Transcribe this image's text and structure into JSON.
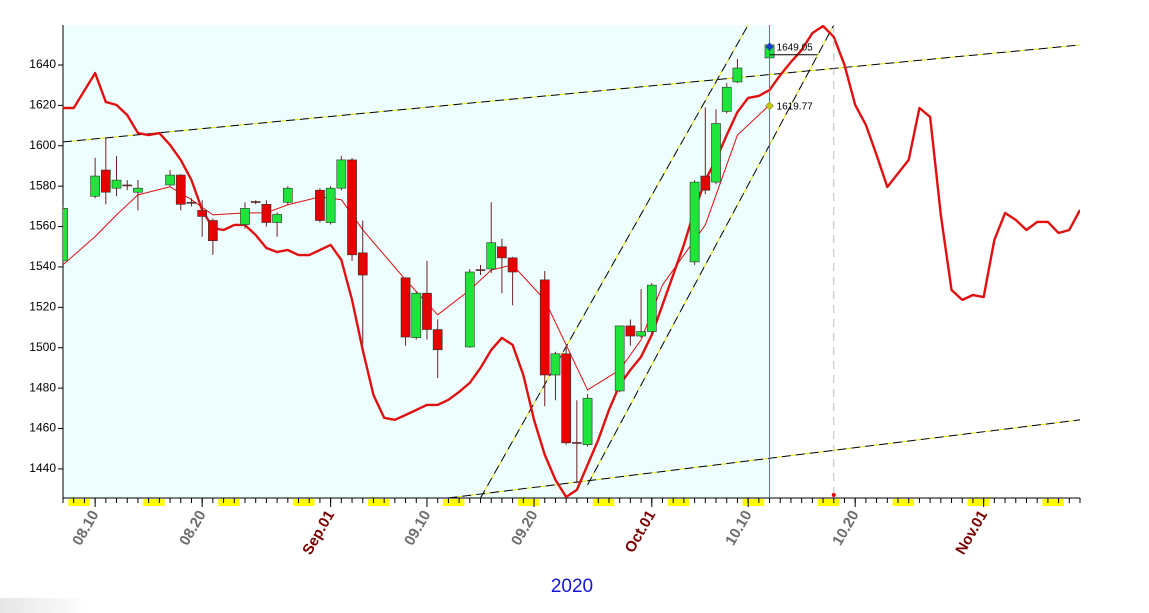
{
  "chart_data": {
    "type": "candlestick",
    "xlabel": "2020",
    "x": [
      "2020-08-07",
      "2020-08-10",
      "2020-08-11",
      "2020-08-12",
      "2020-08-13",
      "2020-08-14",
      "2020-08-17",
      "2020-08-18",
      "2020-08-19",
      "2020-08-20",
      "2020-08-21",
      "2020-08-24",
      "2020-08-25",
      "2020-08-26",
      "2020-08-27",
      "2020-08-28",
      "2020-08-31",
      "2020-09-01",
      "2020-09-02",
      "2020-09-03",
      "2020-09-04",
      "2020-09-08",
      "2020-09-09",
      "2020-09-10",
      "2020-09-11",
      "2020-09-14",
      "2020-09-15",
      "2020-09-16",
      "2020-09-17",
      "2020-09-18",
      "2020-09-21",
      "2020-09-22",
      "2020-09-23",
      "2020-09-24",
      "2020-09-25",
      "2020-09-28",
      "2020-09-29",
      "2020-09-30",
      "2020-10-01",
      "2020-10-05",
      "2020-10-06",
      "2020-10-07",
      "2020-10-08",
      "2020-10-09",
      "2020-10-12"
    ],
    "open": [
      1543,
      1575,
      1588,
      1579,
      1580.6,
      1577,
      1580.6,
      1585.5,
      1572,
      1568,
      1563,
      1561,
      1572.4,
      1571,
      1562,
      1572,
      1578,
      1562,
      1579,
      1593,
      1547,
      1534.6,
      1505,
      1527,
      1509,
      1500.4,
      1538.7,
      1539,
      1550,
      1544.5,
      1533.6,
      1486.5,
      1497,
      1453.1,
      1452,
      1478.6,
      1510.8,
      1505.8,
      1508,
      1542.5,
      1585,
      1582,
      1617,
      1631.6,
      1643.5
    ],
    "high": [
      1570,
      1594,
      1604,
      1595,
      1583,
      1583,
      1588,
      1586,
      1574,
      1573,
      1564,
      1572,
      1573,
      1573,
      1567,
      1580,
      1579,
      1580,
      1595,
      1594,
      1563,
      1535,
      1528,
      1543,
      1514,
      1539,
      1541,
      1572,
      1554,
      1545,
      1538,
      1498,
      1501,
      1474,
      1477,
      1511,
      1514,
      1529,
      1532,
      1583,
      1619,
      1618,
      1631,
      1643,
      1651
    ],
    "low": [
      1541,
      1574,
      1571,
      1575,
      1578,
      1568,
      1580,
      1568,
      1570,
      1555,
      1546,
      1559,
      1571,
      1560,
      1555,
      1571,
      1562,
      1561,
      1578,
      1543,
      1502,
      1501,
      1504,
      1504,
      1485,
      1500,
      1536,
      1537,
      1527,
      1521,
      1471,
      1474,
      1452,
      1433,
      1451,
      1478,
      1501,
      1505,
      1507,
      1541,
      1576,
      1581,
      1616,
      1631,
      1643
    ],
    "close": [
      1569,
      1585,
      1577,
      1583,
      1580.2,
      1579,
      1585.5,
      1571,
      1571.6,
      1565,
      1553,
      1569,
      1572,
      1562,
      1566,
      1579,
      1563,
      1579,
      1593,
      1546,
      1536,
      1505.3,
      1527,
      1509,
      1499,
      1537.5,
      1538.3,
      1552,
      1544.5,
      1537.5,
      1486.5,
      1497,
      1452.9,
      1452.7,
      1475,
      1510.8,
      1505.8,
      1508,
      1531,
      1582,
      1578,
      1611,
      1629,
      1638.5,
      1650
    ],
    "up_color": "#1fe43a",
    "down_color": "#e60000",
    "overlays": [
      {
        "color": "#e01010",
        "width": 2.4,
        "x": [
          "2020-08-07",
          "2020-08-08",
          "2020-08-10",
          "2020-08-11",
          "2020-08-12",
          "2020-08-13",
          "2020-08-14",
          "2020-08-15",
          "2020-08-16",
          "2020-08-17",
          "2020-08-18",
          "2020-08-19",
          "2020-08-20",
          "2020-08-21",
          "2020-08-22",
          "2020-08-23",
          "2020-08-24",
          "2020-08-25",
          "2020-08-26",
          "2020-08-27",
          "2020-08-28",
          "2020-08-29",
          "2020-08-30",
          "2020-08-31",
          "2020-09-01",
          "2020-09-02",
          "2020-09-03",
          "2020-09-04",
          "2020-09-05",
          "2020-09-06",
          "2020-09-07",
          "2020-09-08",
          "2020-09-09",
          "2020-09-10",
          "2020-09-11",
          "2020-09-12",
          "2020-09-13",
          "2020-09-14",
          "2020-09-15",
          "2020-09-16",
          "2020-09-17",
          "2020-09-18",
          "2020-09-19",
          "2020-09-20",
          "2020-09-21",
          "2020-09-22",
          "2020-09-23",
          "2020-09-24",
          "2020-09-25",
          "2020-09-26",
          "2020-09-27",
          "2020-09-28",
          "2020-09-29",
          "2020-09-30",
          "2020-10-01",
          "2020-10-02",
          "2020-10-03",
          "2020-10-04",
          "2020-10-05",
          "2020-10-06",
          "2020-10-07",
          "2020-10-08",
          "2020-10-09",
          "2020-10-10",
          "2020-10-11",
          "2020-10-12",
          "2020-10-13",
          "2020-10-14",
          "2020-10-15",
          "2020-10-16",
          "2020-10-17",
          "2020-10-18",
          "2020-10-19",
          "2020-10-20",
          "2020-10-21",
          "2020-10-22",
          "2020-10-23",
          "2020-10-25",
          "2020-10-26",
          "2020-10-27",
          "2020-10-28",
          "2020-10-29",
          "2020-10-30",
          "2020-10-31",
          "2020-11-01",
          "2020-11-02",
          "2020-11-03",
          "2020-11-04",
          "2020-11-05",
          "2020-11-06",
          "2020-11-07",
          "2020-11-08",
          "2020-11-09",
          "2020-11-10"
        ],
        "values": [
          1618.7,
          1618.7,
          1636,
          1621.7,
          1620.2,
          1615.2,
          1606.3,
          1605.3,
          1606.3,
          1600.4,
          1593,
          1583,
          1568.2,
          1559.3,
          1558.3,
          1560.8,
          1560.8,
          1555.8,
          1549.4,
          1547.4,
          1548.4,
          1545.9,
          1545.9,
          1548.4,
          1550.9,
          1543.5,
          1523.7,
          1498.9,
          1476.6,
          1465.3,
          1464.3,
          1466.7,
          1469.2,
          1471.7,
          1471.7,
          1474.2,
          1478.1,
          1482.6,
          1490,
          1498.9,
          1504.9,
          1501.4,
          1486.5,
          1464.3,
          1447,
          1434.6,
          1426.1,
          1429.6,
          1442,
          1454.4,
          1469.2,
          1481.6,
          1489,
          1495.5,
          1506.4,
          1521.2,
          1536.1,
          1551,
          1568.2,
          1583,
          1593,
          1605.3,
          1616.7,
          1623.7,
          1624.7,
          1627.6,
          1635,
          1641.5,
          1647.4,
          1655.8,
          1659.3,
          1653.9,
          1640,
          1620.2,
          1610.3,
          1595.4,
          1579.6,
          1593,
          1618.7,
          1614.3,
          1565.7,
          1528.6,
          1523.7,
          1526.1,
          1525.1,
          1553.4,
          1566.7,
          1563.3,
          1558.3,
          1562.3,
          1562.3,
          1556.8,
          1558.3,
          1568.2
        ]
      },
      {
        "color": "#e01010",
        "width": 1,
        "x": [
          "2020-08-07",
          "2020-08-10",
          "2020-08-12",
          "2020-08-14",
          "2020-08-17",
          "2020-08-19",
          "2020-08-21",
          "2020-08-24",
          "2020-08-26",
          "2020-08-28",
          "2020-08-31",
          "2020-09-02",
          "2020-09-04",
          "2020-09-08",
          "2020-09-11",
          "2020-09-14",
          "2020-09-16",
          "2020-09-18",
          "2020-09-21",
          "2020-09-23",
          "2020-09-25",
          "2020-09-28",
          "2020-09-30",
          "2020-10-02",
          "2020-10-06",
          "2020-10-09",
          "2020-10-12"
        ],
        "values": [
          1541.1,
          1555,
          1565.8,
          1575.7,
          1579.7,
          1573.3,
          1565.8,
          1566.8,
          1566.8,
          1570.8,
          1574.7,
          1573.3,
          1558.4,
          1533.6,
          1516.3,
          1528.6,
          1538.5,
          1541,
          1523.7,
          1501.4,
          1479.1,
          1489,
          1503.9,
          1531.1,
          1560.8,
          1605.3,
          1620.2
        ]
      }
    ],
    "trendlines": [
      {
        "x": [
          "2020-08-07",
          "2020-11-10"
        ],
        "values": [
          1601.9,
          1649.9
        ]
      },
      {
        "x": [
          "2020-09-12",
          "2020-11-10"
        ],
        "values": [
          1425.6,
          1464.3
        ]
      },
      {
        "x": [
          "2020-09-15",
          "2020-10-10"
        ],
        "values": [
          1425.6,
          1659.8
        ]
      },
      {
        "x": [
          "2020-09-25",
          "2020-10-18"
        ],
        "values": [
          1432.1,
          1659.8
        ]
      }
    ],
    "markers": [
      {
        "x": "2020-10-12",
        "value": 1649.05,
        "color": "#1a3fd0"
      },
      {
        "x": "2020-10-12",
        "value": 1619.77,
        "color": "#c8c800"
      }
    ],
    "shade_until": "2020-10-12",
    "cursor_x": "2020-10-18",
    "xlim": [
      "2020-08-07",
      "2020-11-10"
    ],
    "xticks": [
      {
        "value": "2020-08-10",
        "label": "08.10"
      },
      {
        "value": "2020-08-20",
        "label": "08.20"
      },
      {
        "value": "2020-09-01",
        "label": "Sep.01"
      },
      {
        "value": "2020-09-10",
        "label": "09.10"
      },
      {
        "value": "2020-09-20",
        "label": "09.20"
      },
      {
        "value": "2020-10-01",
        "label": "Oct.01"
      },
      {
        "value": "2020-10-10",
        "label": "10.10"
      },
      {
        "value": "2020-10-20",
        "label": "10.20"
      },
      {
        "value": "2020-11-01",
        "label": "Nov.01"
      }
    ],
    "ylim": [
      1425.6,
      1659.8
    ],
    "yticks": [
      1440,
      1460,
      1480,
      1500,
      1520,
      1540,
      1560,
      1580,
      1600,
      1620,
      1640
    ],
    "grid": false
  }
}
